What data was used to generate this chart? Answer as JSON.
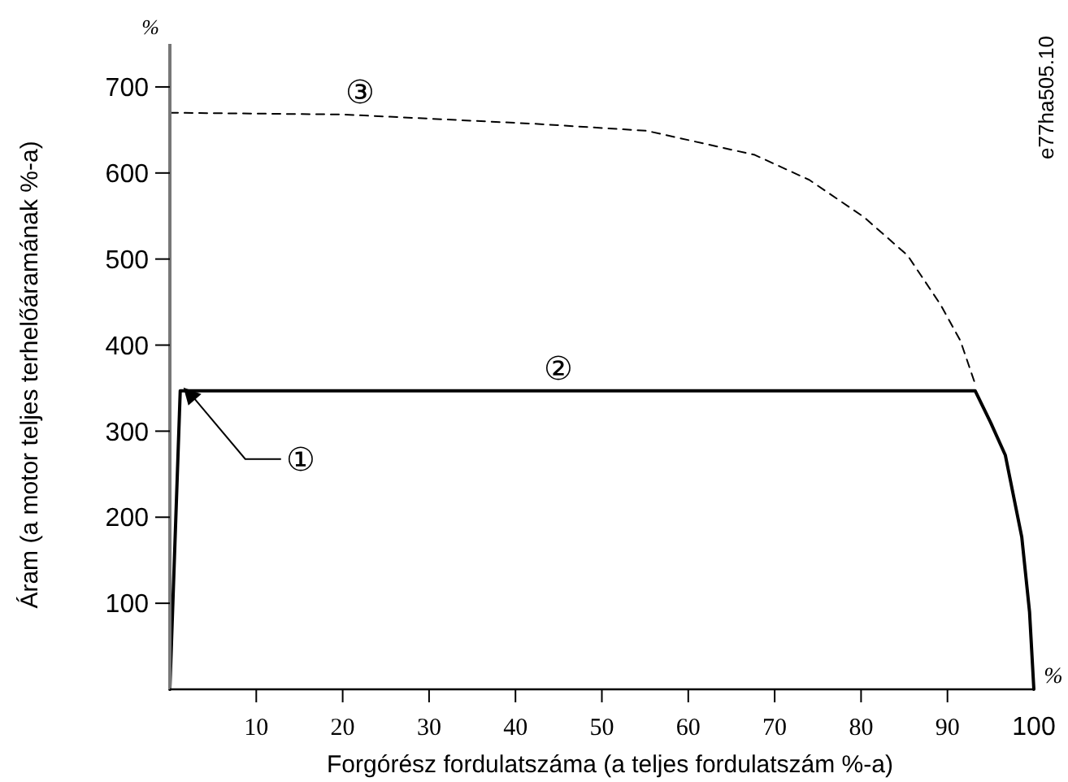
{
  "chart_data": {
    "type": "line",
    "xlabel": "Forgórész fordulatszáma (a teljes fordulatszám %-a)",
    "ylabel": "Áram (a motor teljes terhelőáramának %-a)",
    "xlim": [
      0,
      100
    ],
    "ylim": [
      0,
      750
    ],
    "xticks": [
      10,
      20,
      30,
      40,
      50,
      60,
      70,
      80,
      90,
      100
    ],
    "yticks": [
      100,
      200,
      300,
      400,
      500,
      600,
      700
    ],
    "grid": false,
    "series": [
      {
        "color": "#000000",
        "line_style": "solid",
        "x": [
          0,
          1.2,
          93.2,
          95,
          96.7,
          98.6,
          99.5,
          100
        ],
        "values": [
          0,
          347,
          347,
          310,
          272,
          177,
          90,
          0
        ]
      },
      {
        "color": "#000000",
        "line_style": "dashed",
        "x": [
          0,
          20,
          42.6,
          55.2,
          67.7,
          74,
          80.3,
          85.4,
          89.2,
          91.5,
          93.2
        ],
        "values": [
          670,
          668,
          657,
          649,
          621,
          592,
          549,
          504,
          447,
          405,
          355
        ]
      }
    ],
    "annotations": [
      {
        "text": "①",
        "x": 1.2,
        "y": 347
      },
      {
        "text": "②",
        "x": 45,
        "y": 347
      },
      {
        "text": "③",
        "x": 22,
        "y": 668
      },
      "%",
      "%",
      "e77ha505.10"
    ]
  }
}
